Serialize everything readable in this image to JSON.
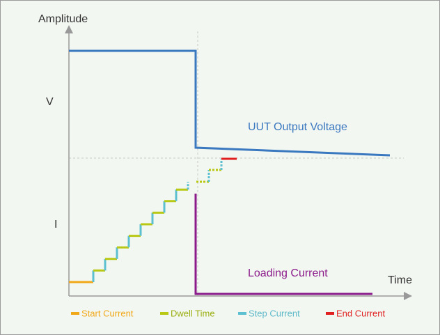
{
  "axes": {
    "y_label": "Amplitude",
    "x_label": "Time",
    "v_label": "V",
    "i_label": "I"
  },
  "curves": {
    "voltage": "UUT Output Voltage",
    "current": "Loading Current"
  },
  "legend": [
    "Start Current",
    "Dwell Time",
    "Step Current",
    "End Current"
  ]
}
